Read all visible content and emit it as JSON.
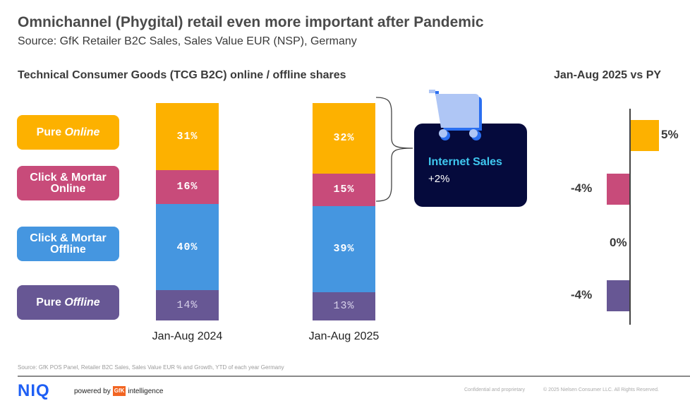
{
  "header": {
    "title": "Omnichannel (Phygital) retail even more important after Pandemic",
    "subtitle": "Source: GfK Retailer B2C Sales, Sales Value EUR (NSP), Germany"
  },
  "legend": [
    {
      "label_main": "Pure ",
      "label_italic": "Online",
      "color": "#fdb100"
    },
    {
      "label_main": "Click & Mortar Online",
      "label_italic": "",
      "color": "#c84b7a"
    },
    {
      "label_main": "Click & Mortar Offline",
      "label_italic": "",
      "color": "#4596e0"
    },
    {
      "label_main": "Pure ",
      "label_italic": "Offline",
      "color": "#675794"
    }
  ],
  "callout": {
    "icon": "shopping-cart-icon",
    "title": "Internet Sales",
    "value": "+2%"
  },
  "chart_data": [
    {
      "type": "bar",
      "stacked": true,
      "title": "Technical Consumer Goods (TCG B2C) online / offline shares",
      "categories": [
        "Jan-Aug 2024",
        "Jan-Aug 2025"
      ],
      "series": [
        {
          "name": "Pure Online",
          "color": "#fdb100",
          "values": [
            31,
            32
          ],
          "labels": [
            "31%",
            "32%"
          ]
        },
        {
          "name": "Click & Mortar Online",
          "color": "#c84b7a",
          "values": [
            16,
            15
          ],
          "labels": [
            "16%",
            "15%"
          ]
        },
        {
          "name": "Click & Mortar Offline",
          "color": "#4596e0",
          "values": [
            40,
            39
          ],
          "labels": [
            "40%",
            "39%"
          ]
        },
        {
          "name": "Pure Offline",
          "color": "#675794",
          "values": [
            14,
            13
          ],
          "labels": [
            "14%",
            "13%"
          ]
        }
      ],
      "xlabel": "",
      "ylabel": "",
      "ylim": [
        0,
        100
      ],
      "grid": false,
      "legend_placement": "left"
    },
    {
      "type": "bar",
      "orientation": "horizontal",
      "title": "Jan-Aug 2025 vs PY",
      "categories": [
        "Pure Online",
        "Click & Mortar Online",
        "Click & Mortar Offline",
        "Pure Offline"
      ],
      "values": [
        5,
        -4,
        0,
        -4
      ],
      "labels": [
        "5%",
        "-4%",
        "0%",
        "-4%"
      ],
      "colors": [
        "#fdb100",
        "#c84b7a",
        "#4596e0",
        "#675794"
      ],
      "xlim": [
        -5,
        5
      ],
      "grid": false
    }
  ],
  "footer": {
    "footnote": "Source: GfK POS Panel, Retailer B2C Sales, Sales Value EUR % and Growth, YTD of each year Germany",
    "logo": "NIQ",
    "powered_by": "powered by",
    "gfk": "GfK",
    "intelligence": "intelligence",
    "confidential": "Confidential and proprietary",
    "copyright": "© 2025 Nielsen Consumer LLC. All Rights Reserved."
  }
}
